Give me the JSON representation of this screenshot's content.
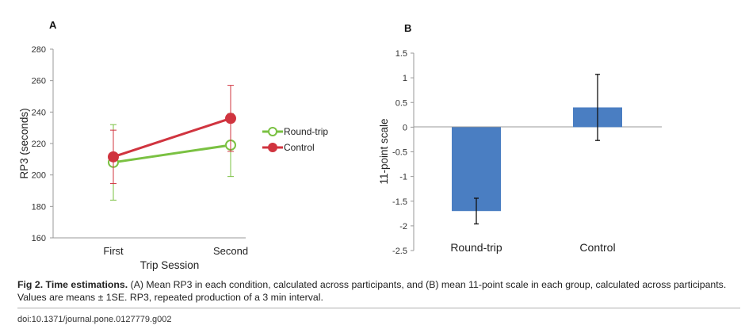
{
  "chart_data": [
    {
      "type": "line",
      "panel_label": "A",
      "title": "",
      "xlabel": "Trip Session",
      "ylabel": "RP3 (seconds)",
      "categories": [
        "First",
        "Second"
      ],
      "ylim": [
        160,
        280
      ],
      "yticks": [
        "160",
        "180",
        "200",
        "220",
        "240",
        "260",
        "280"
      ],
      "legend_position": "right",
      "series": [
        {
          "name": "Round-trip",
          "color": "#7ac142",
          "marker": "open-circle",
          "values": [
            208,
            219
          ],
          "error": [
            24,
            20
          ]
        },
        {
          "name": "Control",
          "color": "#d0343f",
          "marker": "filled-circle",
          "values": [
            211.5,
            236
          ],
          "error": [
            17,
            21
          ]
        }
      ]
    },
    {
      "type": "bar",
      "panel_label": "B",
      "title": "",
      "xlabel": "",
      "ylabel": "11-point scale",
      "categories": [
        "Round-trip",
        "Control"
      ],
      "values": [
        -1.7,
        0.4
      ],
      "error": [
        0.26,
        0.67
      ],
      "ylim": [
        -2.5,
        1.5
      ],
      "yticks": [
        "-2.5",
        "-2",
        "-1.5",
        "-1",
        "-0.5",
        "0",
        "0.5",
        "1",
        "1.5"
      ],
      "bar_color": "#4a7ec2"
    }
  ],
  "caption": {
    "label": "Fig 2. Time estimations.",
    "text": " (A) Mean RP3 in each condition, calculated across participants, and (B) mean 11-point scale in each group, calculated across participants. Values are means ± 1SE. RP3, repeated production of a 3 min interval."
  },
  "doi": "doi:10.1371/journal.pone.0127779.g002"
}
